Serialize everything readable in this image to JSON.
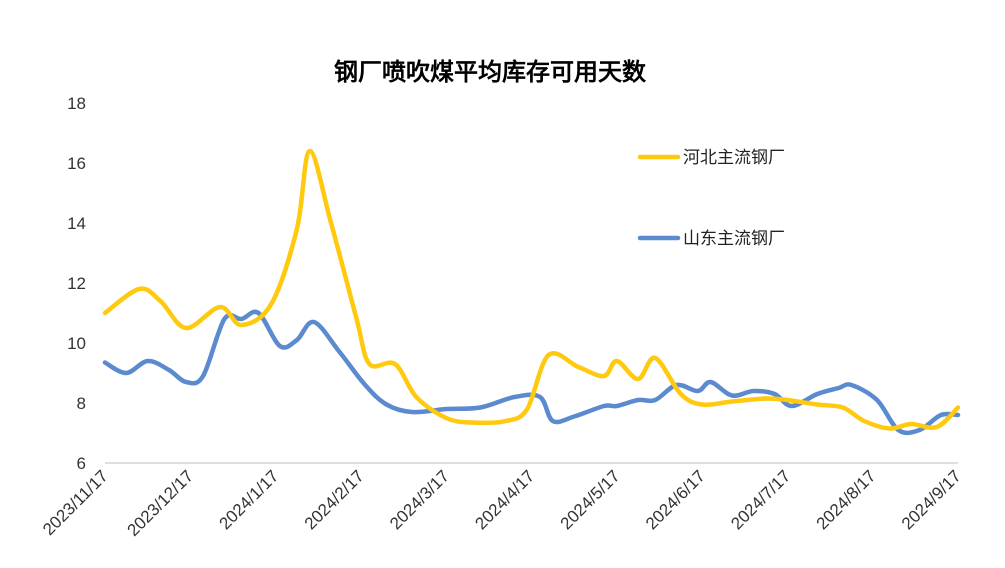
{
  "chart_data": {
    "type": "line",
    "title": "钢厂喷吹煤平均库存可用天数",
    "xlabel": "",
    "ylabel": "",
    "ylim": [
      6,
      18
    ],
    "yticks": [
      6,
      8,
      10,
      12,
      14,
      16,
      18
    ],
    "x_tick_labels": [
      "2023/11/17",
      "2023/12/17",
      "2024/1/17",
      "2024/2/17",
      "2024/3/17",
      "2024/4/17",
      "2024/5/17",
      "2024/6/17",
      "2024/7/17",
      "2024/8/17",
      "2024/9/17"
    ],
    "x_range": [
      0,
      10
    ],
    "grid": false,
    "legend_position": "right",
    "series": [
      {
        "name": "河北主流钢厂",
        "color": "#FFC90E",
        "points": [
          [
            0.0,
            11.0
          ],
          [
            0.4,
            11.8
          ],
          [
            0.65,
            11.4
          ],
          [
            0.95,
            10.5
          ],
          [
            1.35,
            11.2
          ],
          [
            1.6,
            10.6
          ],
          [
            1.95,
            11.3
          ],
          [
            2.25,
            13.8
          ],
          [
            2.4,
            16.4
          ],
          [
            2.65,
            14.0
          ],
          [
            2.95,
            10.8
          ],
          [
            3.1,
            9.3
          ],
          [
            3.4,
            9.3
          ],
          [
            3.65,
            8.2
          ],
          [
            4.0,
            7.5
          ],
          [
            4.3,
            7.35
          ],
          [
            4.7,
            7.4
          ],
          [
            4.95,
            7.8
          ],
          [
            5.2,
            9.6
          ],
          [
            5.55,
            9.2
          ],
          [
            5.85,
            8.9
          ],
          [
            6.0,
            9.4
          ],
          [
            6.25,
            8.8
          ],
          [
            6.45,
            9.5
          ],
          [
            6.75,
            8.3
          ],
          [
            7.0,
            7.95
          ],
          [
            7.35,
            8.05
          ],
          [
            7.75,
            8.15
          ],
          [
            8.0,
            8.1
          ],
          [
            8.35,
            7.95
          ],
          [
            8.65,
            7.85
          ],
          [
            8.9,
            7.4
          ],
          [
            9.2,
            7.15
          ],
          [
            9.45,
            7.3
          ],
          [
            9.75,
            7.2
          ],
          [
            10.0,
            7.85
          ]
        ]
      },
      {
        "name": "山东主流钢厂",
        "color": "#5B8ACF",
        "points": [
          [
            0.0,
            9.35
          ],
          [
            0.25,
            9.0
          ],
          [
            0.5,
            9.4
          ],
          [
            0.75,
            9.1
          ],
          [
            0.95,
            8.7
          ],
          [
            1.15,
            8.9
          ],
          [
            1.4,
            10.8
          ],
          [
            1.6,
            10.8
          ],
          [
            1.8,
            11.0
          ],
          [
            2.05,
            9.9
          ],
          [
            2.25,
            10.1
          ],
          [
            2.45,
            10.7
          ],
          [
            2.75,
            9.7
          ],
          [
            3.05,
            8.6
          ],
          [
            3.3,
            7.95
          ],
          [
            3.6,
            7.7
          ],
          [
            4.0,
            7.8
          ],
          [
            4.4,
            7.85
          ],
          [
            4.8,
            8.2
          ],
          [
            5.1,
            8.2
          ],
          [
            5.25,
            7.4
          ],
          [
            5.5,
            7.55
          ],
          [
            5.85,
            7.9
          ],
          [
            6.0,
            7.9
          ],
          [
            6.25,
            8.1
          ],
          [
            6.45,
            8.1
          ],
          [
            6.7,
            8.6
          ],
          [
            6.95,
            8.4
          ],
          [
            7.1,
            8.7
          ],
          [
            7.35,
            8.25
          ],
          [
            7.6,
            8.4
          ],
          [
            7.85,
            8.3
          ],
          [
            8.05,
            7.9
          ],
          [
            8.35,
            8.3
          ],
          [
            8.6,
            8.5
          ],
          [
            8.75,
            8.6
          ],
          [
            9.05,
            8.1
          ],
          [
            9.3,
            7.1
          ],
          [
            9.55,
            7.1
          ],
          [
            9.8,
            7.6
          ],
          [
            10.0,
            7.6
          ]
        ]
      }
    ]
  }
}
